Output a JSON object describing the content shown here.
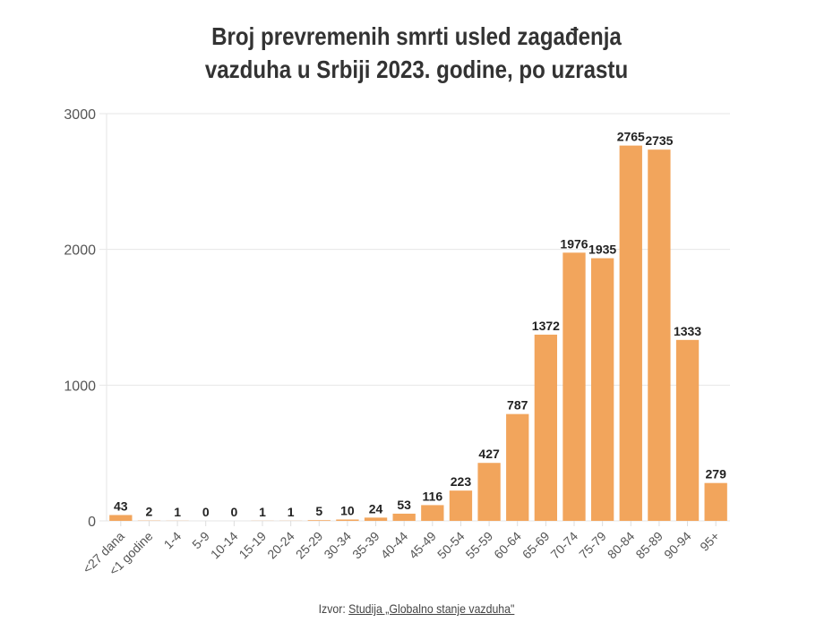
{
  "chart_data": {
    "type": "bar",
    "title": [
      "Broj prevremenih smrti usled zagađenja",
      "vazduha u Srbiji 2023. godine, po uzrastu"
    ],
    "xlabel": "",
    "ylabel": "",
    "ylim": [
      0,
      3000
    ],
    "yticks": [
      0,
      1000,
      2000,
      3000
    ],
    "grid": true,
    "bar_color": "#f2a55c",
    "categories": [
      "<27 dana",
      "<1 godine",
      "1-4",
      "5-9",
      "10-14",
      "15-19",
      "20-24",
      "25-29",
      "30-34",
      "35-39",
      "40-44",
      "45-49",
      "50-54",
      "55-59",
      "60-64",
      "65-69",
      "70-74",
      "75-79",
      "80-84",
      "85-89",
      "90-94",
      "95+"
    ],
    "values": [
      43,
      2,
      1,
      0,
      0,
      1,
      1,
      5,
      10,
      24,
      53,
      116,
      223,
      427,
      787,
      1372,
      1976,
      1935,
      2765,
      2735,
      1333,
      279
    ]
  },
  "source": {
    "prefix": "Izvor: ",
    "link_text": "Studija „Globalno stanje vazduha\""
  }
}
